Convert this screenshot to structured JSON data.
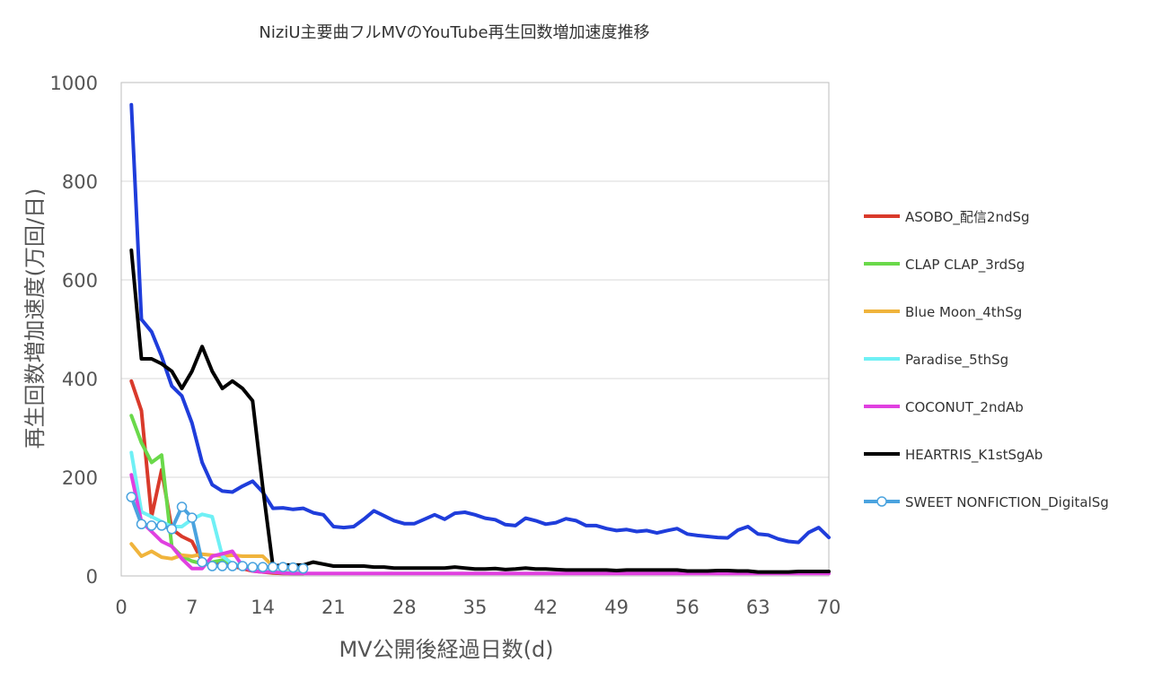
{
  "chart_data": {
    "type": "line",
    "title": "NiziU主要曲フルMVのYouTube再生回数増加速度推移",
    "xlabel": "MV公開後経過日数(d)",
    "ylabel": "再生回数増加速度(万回/日)",
    "xlim": [
      0,
      70
    ],
    "ylim": [
      0,
      1000
    ],
    "xticks": [
      0,
      7,
      14,
      21,
      28,
      35,
      42,
      49,
      56,
      63,
      70
    ],
    "yticks": [
      0,
      200,
      400,
      600,
      800,
      1000
    ],
    "grid": "horizontal",
    "legend_position": "right",
    "series": [
      {
        "name": "(unlabeled)",
        "color": "#1f3ddb",
        "marker": "none",
        "in_legend": false,
        "x": [
          1,
          2,
          3,
          4,
          5,
          6,
          7,
          8,
          9,
          10,
          11,
          12,
          13,
          14,
          15,
          16,
          17,
          18,
          19,
          20,
          21,
          22,
          23,
          24,
          25,
          26,
          27,
          28,
          29,
          30,
          31,
          32,
          33,
          34,
          35,
          36,
          37,
          38,
          39,
          40,
          41,
          42,
          43,
          44,
          45,
          46,
          47,
          48,
          49,
          50,
          51,
          52,
          53,
          54,
          55,
          56,
          57,
          58,
          59,
          60,
          61,
          62,
          63,
          64,
          65,
          66,
          67,
          68,
          69,
          70
        ],
        "y": [
          955,
          520,
          495,
          445,
          385,
          365,
          310,
          230,
          185,
          172,
          170,
          182,
          192,
          170,
          137,
          138,
          135,
          137,
          128,
          124,
          100,
          98,
          100,
          115,
          132,
          122,
          112,
          106,
          106,
          115,
          124,
          115,
          127,
          129,
          124,
          117,
          114,
          104,
          102,
          117,
          112,
          105,
          108,
          116,
          112,
          102,
          102,
          96,
          92,
          94,
          90,
          92,
          87,
          92,
          96,
          85,
          82,
          80,
          78,
          77,
          93,
          100,
          85,
          83,
          75,
          70,
          68,
          88,
          98,
          78
        ]
      },
      {
        "name": "ASOBO_配信2ndSg",
        "color": "#d93a2b",
        "marker": "none",
        "in_legend": true,
        "x": [
          1,
          2,
          3,
          4,
          5,
          6,
          7,
          8,
          9,
          10,
          11,
          12,
          13,
          14,
          15,
          16,
          17,
          18
        ],
        "y": [
          395,
          335,
          120,
          215,
          95,
          80,
          70,
          30,
          25,
          25,
          20,
          15,
          10,
          8,
          6,
          5,
          5,
          5
        ]
      },
      {
        "name": "CLAP CLAP_3rdSg",
        "color": "#6ad94a",
        "marker": "none",
        "in_legend": true,
        "x": [
          1,
          2,
          3,
          4,
          5,
          6,
          7,
          8,
          9,
          10,
          11,
          12,
          13,
          14,
          15,
          16,
          17,
          18
        ],
        "y": [
          325,
          270,
          230,
          245,
          60,
          40,
          30,
          25,
          28,
          32,
          25,
          20,
          15,
          10,
          8,
          6,
          5,
          5
        ]
      },
      {
        "name": "Blue Moon_4thSg",
        "color": "#f0b43c",
        "marker": "none",
        "in_legend": true,
        "x": [
          1,
          2,
          3,
          4,
          5,
          6,
          7,
          8,
          9,
          10,
          11,
          12,
          13,
          14,
          15,
          16,
          17,
          18
        ],
        "y": [
          65,
          40,
          50,
          38,
          35,
          42,
          40,
          44,
          42,
          40,
          42,
          40,
          40,
          40,
          20,
          15,
          12,
          10
        ]
      },
      {
        "name": "Paradise_5thSg",
        "color": "#6ff0f5",
        "marker": "none",
        "in_legend": true,
        "x": [
          1,
          2,
          3,
          4,
          5,
          6,
          7,
          8,
          9,
          10,
          11,
          12,
          13,
          14,
          15,
          16,
          17,
          18
        ],
        "y": [
          250,
          130,
          120,
          110,
          100,
          100,
          115,
          125,
          120,
          40,
          25,
          20,
          15,
          12,
          10,
          8,
          8,
          6
        ]
      },
      {
        "name": "COCONUT_2ndAb",
        "color": "#e040e0",
        "marker": "none",
        "in_legend": true,
        "x": [
          1,
          2,
          3,
          4,
          5,
          6,
          7,
          8,
          9,
          10,
          11,
          12,
          13,
          14,
          15,
          16,
          17,
          18,
          19,
          20,
          21,
          22,
          23,
          24,
          25,
          26,
          27,
          28,
          29,
          30,
          31,
          32,
          33,
          34,
          35,
          36,
          37,
          38,
          39,
          40,
          41,
          42,
          43,
          44,
          45,
          46,
          47,
          48,
          49,
          50,
          51,
          52,
          53,
          54,
          55,
          56,
          57,
          58,
          59,
          60,
          61,
          62,
          63,
          64,
          65,
          66,
          67,
          68,
          69,
          70
        ],
        "y": [
          205,
          110,
          90,
          70,
          60,
          35,
          15,
          15,
          40,
          45,
          50,
          20,
          10,
          8,
          8,
          6,
          5,
          5,
          5,
          5,
          5,
          5,
          5,
          5,
          5,
          5,
          5,
          5,
          5,
          5,
          5,
          5,
          5,
          5,
          5,
          5,
          5,
          5,
          5,
          5,
          5,
          5,
          5,
          5,
          5,
          5,
          5,
          5,
          5,
          5,
          5,
          5,
          5,
          5,
          5,
          5,
          5,
          5,
          5,
          5,
          5,
          5,
          5,
          5,
          5,
          5,
          5,
          5,
          5,
          5
        ]
      },
      {
        "name": "HEARTRIS_K1stSgAb",
        "color": "#000000",
        "marker": "none",
        "in_legend": true,
        "x": [
          1,
          2,
          3,
          4,
          5,
          6,
          7,
          8,
          9,
          10,
          11,
          12,
          13,
          14,
          15,
          16,
          17,
          18,
          19,
          20,
          21,
          22,
          23,
          24,
          25,
          26,
          27,
          28,
          29,
          30,
          31,
          32,
          33,
          34,
          35,
          36,
          37,
          38,
          39,
          40,
          41,
          42,
          43,
          44,
          45,
          46,
          47,
          48,
          49,
          50,
          51,
          52,
          53,
          54,
          55,
          56,
          57,
          58,
          59,
          60,
          61,
          62,
          63,
          64,
          65,
          66,
          67,
          68,
          69,
          70
        ],
        "y": [
          660,
          440,
          440,
          430,
          415,
          380,
          415,
          465,
          415,
          380,
          395,
          380,
          355,
          180,
          20,
          22,
          22,
          22,
          28,
          24,
          20,
          20,
          20,
          20,
          18,
          18,
          16,
          16,
          16,
          16,
          16,
          16,
          18,
          16,
          14,
          14,
          15,
          13,
          14,
          16,
          14,
          14,
          13,
          12,
          12,
          12,
          12,
          12,
          11,
          12,
          12,
          12,
          12,
          12,
          12,
          10,
          10,
          10,
          11,
          11,
          10,
          10,
          8,
          8,
          8,
          8,
          9,
          9,
          9,
          9
        ]
      },
      {
        "name": "SWEET NONFICTION_DigitalSg",
        "color": "#4aa3df",
        "marker": "circle",
        "in_legend": true,
        "x": [
          1,
          2,
          3,
          4,
          5,
          6,
          7,
          8,
          9,
          10,
          11,
          12,
          13,
          14,
          15,
          16,
          17,
          18
        ],
        "y": [
          160,
          105,
          102,
          102,
          95,
          140,
          118,
          28,
          20,
          20,
          20,
          20,
          18,
          18,
          18,
          18,
          17,
          15
        ]
      }
    ]
  }
}
